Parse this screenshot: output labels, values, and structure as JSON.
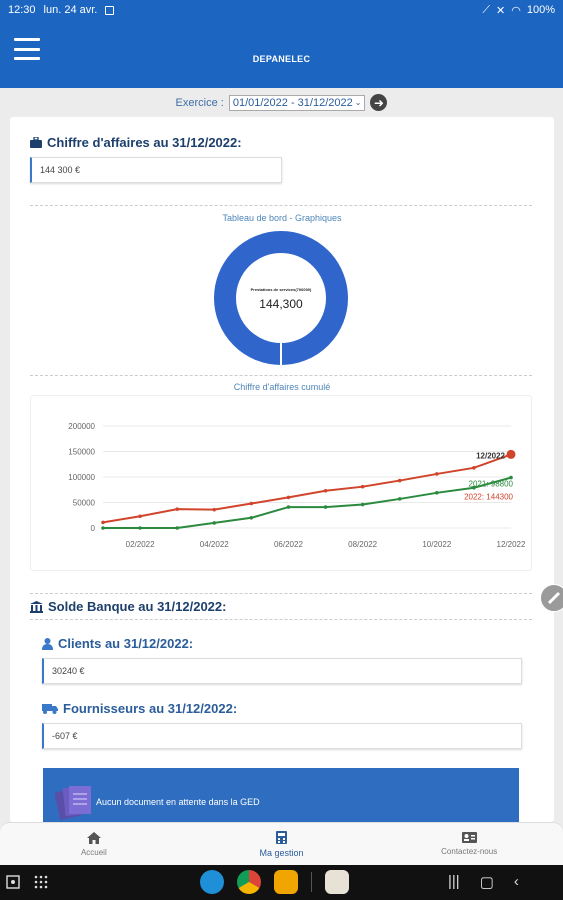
{
  "status_bar": {
    "time": "12:30",
    "date": "lun. 24 avr.",
    "battery": "100%"
  },
  "app": {
    "title": "DEPANELEC"
  },
  "exercice": {
    "label": "Exercice :",
    "value": "01/01/2022 - 31/12/2022"
  },
  "chiffre_affaires": {
    "title": "Chiffre d'affaires au 31/12/2022:",
    "value": "144 300 €"
  },
  "dashboard": {
    "title": "Tableau de bord - Graphiques"
  },
  "donut": {
    "label": "Prestations de services(706000)",
    "value": "144,300",
    "color": "#3066cc"
  },
  "cumul_title": "Chiffre d'affaires cumulé",
  "chart_data": {
    "type": "line",
    "x": [
      "01/2022",
      "02/2022",
      "03/2022",
      "04/2022",
      "05/2022",
      "06/2022",
      "07/2022",
      "08/2022",
      "09/2022",
      "10/2022",
      "11/2022",
      "12/2022"
    ],
    "x_tick_labels": [
      "02/2022",
      "04/2022",
      "06/2022",
      "08/2022",
      "10/2022",
      "12/2022"
    ],
    "y_tick_labels": [
      "0",
      "50000",
      "100000",
      "150000",
      "200000"
    ],
    "ylim": [
      0,
      200000
    ],
    "series": [
      {
        "name": "2022",
        "color": "#d0452b",
        "values": [
          11000,
          23000,
          37000,
          36000,
          48000,
          60000,
          73000,
          81000,
          93000,
          106000,
          118000,
          144300
        ]
      },
      {
        "name": "2021",
        "color": "#2b8a3e",
        "values": [
          0,
          0,
          0,
          10000,
          20000,
          41000,
          41000,
          46000,
          57000,
          69000,
          79000,
          98800
        ]
      }
    ],
    "tooltip": {
      "title": "12/2022",
      "lines": [
        "2021: 98800",
        "2022: 144300"
      ]
    }
  },
  "banque": {
    "title": "Solde Banque au 31/12/2022:"
  },
  "clients": {
    "title": "Clients au 31/12/2022:",
    "value": "30240 €"
  },
  "fournisseurs": {
    "title": "Fournisseurs au 31/12/2022:",
    "value": "-607 €"
  },
  "ged": {
    "text": "Aucun document en attente dans la GED"
  },
  "bottom_nav": [
    {
      "label": "Accueil",
      "icon": "home-icon"
    },
    {
      "label": "Ma gestion",
      "icon": "calculator-icon"
    },
    {
      "label": "Contactez-nous",
      "icon": "contact-card-icon"
    }
  ]
}
